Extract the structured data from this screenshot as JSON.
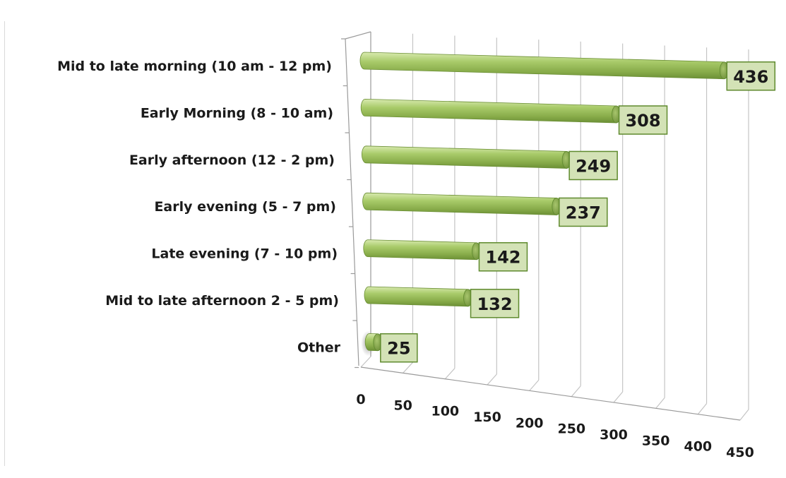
{
  "chart_data": {
    "type": "bar",
    "orientation": "horizontal",
    "style": "3d-cylinder",
    "title": "",
    "xlabel": "",
    "ylabel": "",
    "categories": [
      "Mid to late morning (10 am - 12 pm)",
      "Early Morning (8 - 10 am)",
      "Early afternoon (12 - 2 pm)",
      "Early evening (5 - 7 pm)",
      "Late evening (7 - 10 pm)",
      "Mid to late afternoon 2 - 5 pm)",
      "Other"
    ],
    "values": [
      436,
      308,
      249,
      237,
      142,
      132,
      25
    ],
    "xlim": [
      0,
      450
    ],
    "x_ticks": [
      "0",
      "50",
      "100",
      "150",
      "200",
      "250",
      "300",
      "350",
      "400",
      "450"
    ],
    "grid": true,
    "legend": "none",
    "bar_color": "#9bbb59",
    "label_box_color": "#d3e2b6"
  }
}
